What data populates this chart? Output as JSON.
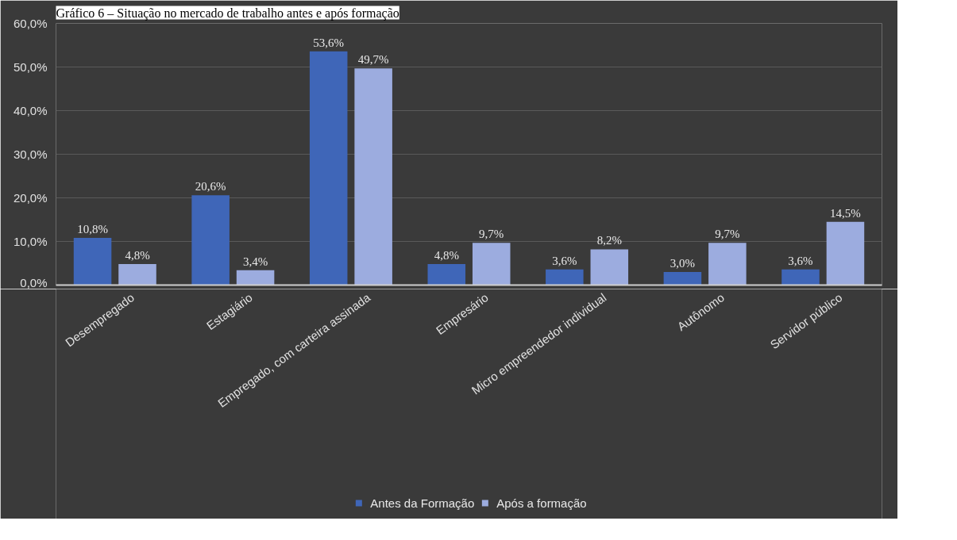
{
  "chart_data": {
    "type": "bar",
    "title": "Gráfico 6 – Situação no mercado de trabalho antes e após formação",
    "categories": [
      "Desempregado",
      "Estagiário",
      "Empregado, com carteira assinada",
      "Empresário",
      "Micro empreendedor individual",
      "Autônomo",
      "Servidor público"
    ],
    "series": [
      {
        "name": "Antes da Formação",
        "color": "#3f66b8",
        "values": [
          10.8,
          20.6,
          53.6,
          4.8,
          3.6,
          3.0,
          3.6
        ],
        "value_labels": [
          "10,8%",
          "20,6%",
          "53,6%",
          "4,8%",
          "3,6%",
          "3,0%",
          "3,6%"
        ]
      },
      {
        "name": "Após a formação",
        "color": "#9cacdf",
        "values": [
          4.8,
          3.4,
          49.7,
          9.7,
          8.2,
          9.7,
          14.5
        ],
        "value_labels": [
          "4,8%",
          "3,4%",
          "49,7%",
          "9,7%",
          "8,2%",
          "9,7%",
          "14,5%"
        ]
      }
    ],
    "ylim": [
      0,
      60
    ],
    "yticks": [
      {
        "value": 0,
        "label": "0,0%"
      },
      {
        "value": 10,
        "label": "10,0%"
      },
      {
        "value": 20,
        "label": "20,0%"
      },
      {
        "value": 30,
        "label": "30,0%"
      },
      {
        "value": 40,
        "label": "40,0%"
      },
      {
        "value": 50,
        "label": "50,0%"
      },
      {
        "value": 60,
        "label": "60,0%"
      }
    ],
    "grid": "y",
    "legend": "bottom"
  }
}
